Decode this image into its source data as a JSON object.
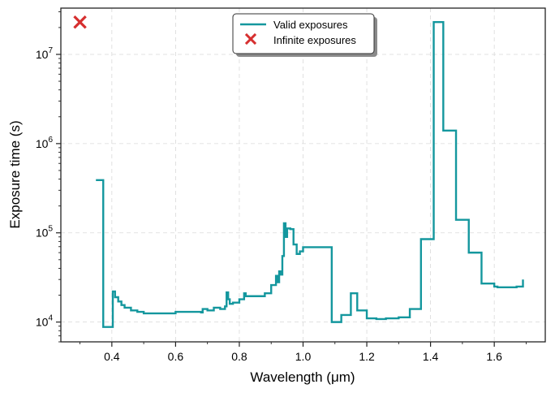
{
  "chart_data": {
    "type": "line",
    "xlabel": "Wavelength (μm)",
    "ylabel": "Exposure time (s)",
    "xlim": [
      0.24,
      1.76
    ],
    "ylim": [
      6000,
      33000000
    ],
    "yscale": "log",
    "grid": true,
    "legend_position": "top-center",
    "xticks": [
      {
        "value": 0.4,
        "label": "0.4"
      },
      {
        "value": 0.6,
        "label": "0.6"
      },
      {
        "value": 0.8,
        "label": "0.8"
      },
      {
        "value": 1.0,
        "label": "1.0"
      },
      {
        "value": 1.2,
        "label": "1.2"
      },
      {
        "value": 1.4,
        "label": "1.4"
      },
      {
        "value": 1.6,
        "label": "1.6"
      }
    ],
    "yticks": [
      {
        "value": 10000,
        "base": "10",
        "exp": "4"
      },
      {
        "value": 100000,
        "base": "10",
        "exp": "5"
      },
      {
        "value": 1000000,
        "base": "10",
        "exp": "6"
      },
      {
        "value": 10000000,
        "base": "10",
        "exp": "7"
      }
    ],
    "series": [
      {
        "name": "Valid exposures",
        "style": "step",
        "color": "#14979e",
        "x": [
          0.35,
          0.373,
          0.4,
          0.403,
          0.41,
          0.42,
          0.43,
          0.44,
          0.46,
          0.48,
          0.5,
          0.55,
          0.6,
          0.65,
          0.68,
          0.685,
          0.7,
          0.72,
          0.74,
          0.755,
          0.76,
          0.765,
          0.77,
          0.78,
          0.8,
          0.815,
          0.82,
          0.85,
          0.88,
          0.9,
          0.915,
          0.92,
          0.925,
          0.93,
          0.935,
          0.94,
          0.945,
          0.95,
          0.96,
          0.97,
          0.98,
          0.99,
          1.0,
          1.09,
          1.1,
          1.12,
          1.15,
          1.17,
          1.2,
          1.21,
          1.23,
          1.26,
          1.3,
          1.335,
          1.37,
          1.41,
          1.44,
          1.48,
          1.52,
          1.56,
          1.6,
          1.61,
          1.65,
          1.67,
          1.69
        ],
        "y": [
          390000,
          8800,
          8800,
          22000,
          19000,
          17000,
          15500,
          14500,
          13500,
          13000,
          12500,
          12500,
          13000,
          13000,
          12800,
          14000,
          13500,
          14500,
          14000,
          15000,
          21500,
          18000,
          16000,
          16500,
          18000,
          21000,
          19500,
          19500,
          21000,
          26000,
          33000,
          28000,
          37000,
          34000,
          55000,
          128000,
          90000,
          112000,
          110000,
          74000,
          58000,
          62000,
          69000,
          10000,
          10000,
          12000,
          21000,
          13500,
          11000,
          11000,
          10800,
          11000,
          11300,
          14000,
          85000,
          23000000,
          1400000,
          140000,
          60000,
          27000,
          25000,
          24500,
          24500,
          25000,
          30000
        ]
      },
      {
        "name": "Infinite exposures",
        "style": "scatter",
        "marker": "x",
        "color": "#d62f2f",
        "x": [
          0.3
        ],
        "y": [
          23000000
        ]
      }
    ]
  }
}
